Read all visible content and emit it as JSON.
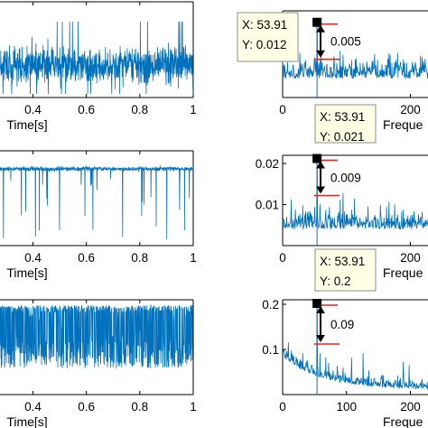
{
  "colors": {
    "signal": "#0072BD",
    "marker": "#E8241A",
    "arrow": "#000000",
    "datatip_bg": "#FFFFE6"
  },
  "chart_data": [
    {
      "type": "line",
      "panel": "time-row-1",
      "xlabel": "Time[s]",
      "xlim": [
        0.27,
        1.0
      ],
      "x_ticks": [
        0.4,
        0.6,
        0.8,
        1
      ],
      "x_tick_labels": [
        "0.4",
        "0.6",
        "0.8",
        "1"
      ],
      "description_of_signal": "dense zero-mean random vibration filling most of the axes height"
    },
    {
      "type": "line",
      "panel": "time-row-2",
      "xlabel": "Time[s]",
      "xlim": [
        0.27,
        1.0
      ],
      "x_ticks": [
        0.4,
        0.6,
        0.8,
        1
      ],
      "x_tick_labels": [
        "0.4",
        "0.6",
        "0.8",
        "1"
      ],
      "description_of_signal": "steady baseline near the top with sparse deep downward impulses"
    },
    {
      "type": "line",
      "panel": "time-row-3",
      "xlabel": "Time[s]",
      "xlim": [
        0.27,
        1.0
      ],
      "x_ticks": [
        0.4,
        0.6,
        0.8,
        1
      ],
      "x_tick_labels": [
        "0.4",
        "0.6",
        "0.8",
        "1"
      ],
      "description_of_signal": "switching between an upper and a lower level with many dense transitions"
    },
    {
      "type": "line",
      "panel": "spectrum-row-1",
      "xlabel": "Freque",
      "xlim": [
        0,
        270
      ],
      "x_ticks": [
        0,
        200
      ],
      "x_tick_labels": [
        "0",
        "200"
      ],
      "datatip": {
        "x_label": "X: 53.91",
        "y_label": "Y: 0.012"
      },
      "peak": {
        "x": 53.91,
        "y": 0.012
      },
      "difference_label": "0.005"
    },
    {
      "type": "line",
      "panel": "spectrum-row-2",
      "xlabel": "Freque",
      "xlim": [
        0,
        270
      ],
      "ylim": [
        0,
        0.022
      ],
      "x_ticks": [
        0,
        200
      ],
      "x_tick_labels": [
        "0",
        "200"
      ],
      "y_ticks": [
        0.01,
        0.02
      ],
      "y_tick_labels": [
        "0.01",
        "0.02"
      ],
      "datatip": {
        "x_label": "X: 53.91",
        "y_label": "Y: 0.021"
      },
      "peak": {
        "x": 53.91,
        "y": 0.021
      },
      "difference_label": "0.009"
    },
    {
      "type": "line",
      "panel": "spectrum-row-3",
      "xlabel": "Freque",
      "xlim": [
        0,
        270
      ],
      "ylim": [
        0,
        0.21
      ],
      "x_ticks": [
        0,
        100,
        200
      ],
      "x_tick_labels": [
        "0",
        "100",
        "200"
      ],
      "y_ticks": [
        0.1,
        0.2
      ],
      "y_tick_labels": [
        "0.1",
        "0.2"
      ],
      "datatip": {
        "x_label": "X: 53.91",
        "y_label": "Y: 0.2"
      },
      "peak": {
        "x": 53.91,
        "y": 0.2
      },
      "difference_label": "0.09"
    }
  ]
}
